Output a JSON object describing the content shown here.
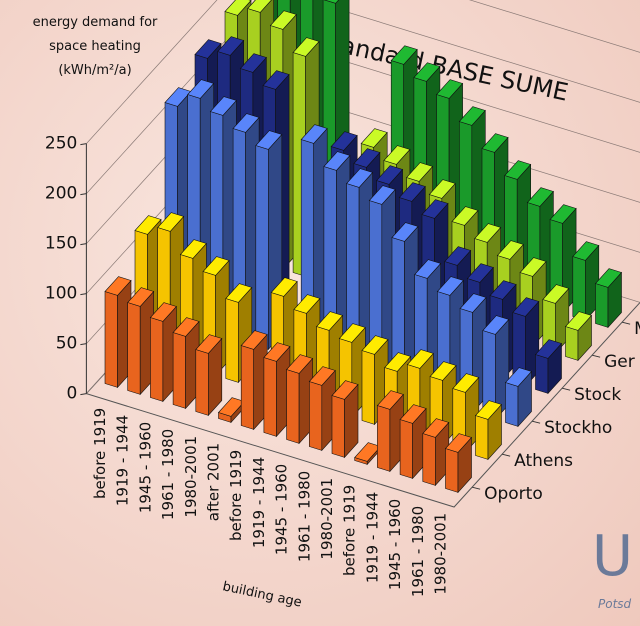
{
  "chart_data": {
    "type": "bar3d",
    "title": "standard BASE SUME",
    "ylabel": [
      "energy demand for",
      "space heating",
      "(kWh/m²/a)"
    ],
    "xlabel": "building age",
    "annotations": [
      "U",
      "Potsd"
    ],
    "categories": [
      "before 1919",
      "1919 - 1944",
      "1945 - 1960",
      "1961 - 1980",
      "1980-2001",
      "after 2001",
      "before 1919",
      "1919 - 1944",
      "1945 - 1960",
      "1961 - 1980",
      "1980-2001",
      "before 1919",
      "1919 - 1944",
      "1945 - 1960",
      "1961 - 1980",
      "1980-2001"
    ],
    "series": [
      {
        "name": "Oporto",
        "color": "#e8641e",
        "values": [
          92,
          88,
          80,
          72,
          62,
          6,
          80,
          75,
          70,
          65,
          58,
          3,
          62,
          55,
          48,
          40
        ]
      },
      {
        "name": "Athens",
        "color": "#f5c400",
        "values": [
          120,
          130,
          110,
          100,
          80,
          null,
          100,
          90,
          80,
          75,
          70,
          60,
          70,
          65,
          60,
          40
        ]
      },
      {
        "name": "Stockho",
        "color": "#4a6fd0",
        "values": [
          215,
          230,
          220,
          210,
          200,
          null,
          220,
          200,
          190,
          180,
          150,
          120,
          110,
          100,
          85,
          40
        ]
      },
      {
        "name": "Stock",
        "color": "#1e2a80",
        "values": [
          230,
          240,
          230,
          220,
          null,
          null,
          180,
          170,
          160,
          150,
          140,
          100,
          90,
          80,
          70,
          35
        ]
      },
      {
        "name": "Ger",
        "color": "#a8d020",
        "values": [
          240,
          250,
          240,
          220,
          null,
          null,
          150,
          140,
          130,
          120,
          100,
          90,
          80,
          70,
          50,
          30
        ]
      },
      {
        "name": "M",
        "color": "#1a9a2a",
        "values": [
          260,
          270,
          260,
          240,
          null,
          null,
          200,
          190,
          180,
          160,
          140,
          120,
          100,
          90,
          60,
          40
        ]
      }
    ],
    "ylim": [
      0,
      250
    ],
    "yticks": [
      0,
      50,
      100,
      150,
      200,
      250
    ],
    "grid": true
  }
}
